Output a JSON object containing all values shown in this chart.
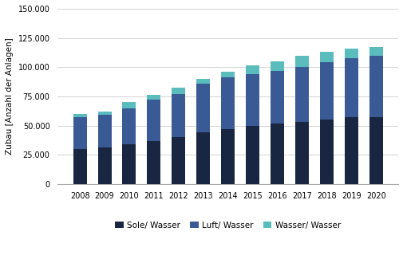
{
  "years": [
    "2008",
    "2009",
    "2010",
    "2011",
    "2012",
    "2013",
    "2014",
    "2015",
    "2016",
    "2017",
    "2018",
    "2019",
    "2020"
  ],
  "sole_wasser": [
    30000,
    31000,
    34000,
    37000,
    40000,
    44000,
    47000,
    50000,
    52000,
    53000,
    55000,
    57000,
    57500
  ],
  "luft_wasser": [
    27000,
    28000,
    31000,
    35000,
    37000,
    42000,
    44000,
    44000,
    45000,
    47000,
    49000,
    51000,
    52000
  ],
  "wasser_wasser": [
    3000,
    3000,
    5000,
    4000,
    5500,
    4000,
    5000,
    7500,
    8000,
    10000,
    9000,
    8000,
    8000
  ],
  "colors": {
    "sole_wasser": "#192641",
    "luft_wasser": "#3a5a96",
    "wasser_wasser": "#5bbcbe"
  },
  "ylabel": "Zubau [Anzahl der Anlagen]",
  "ylim": [
    0,
    150000
  ],
  "yticks": [
    0,
    25000,
    50000,
    75000,
    100000,
    125000,
    150000
  ],
  "legend_labels": [
    "Sole/ Wasser",
    "Luft/ Wasser",
    "Wasser/ Wasser"
  ],
  "background_color": "#ffffff",
  "grid_color": "#cccccc",
  "spine_color": "#aaaaaa"
}
